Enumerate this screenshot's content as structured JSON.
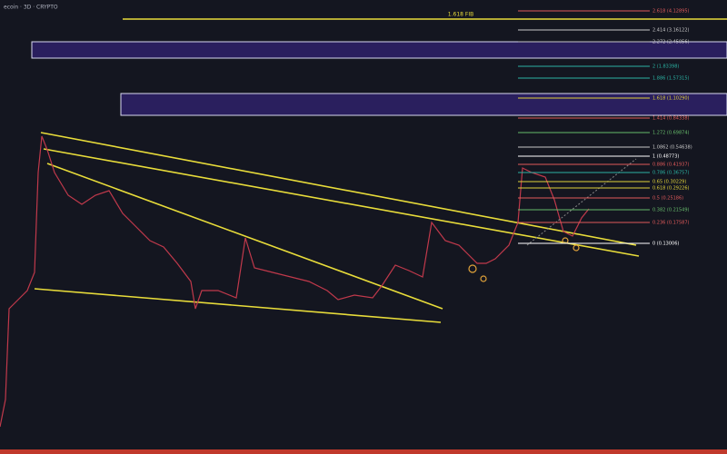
{
  "header": {
    "symbol": "ecoin · 3D · CRYPTO"
  },
  "extension_label": "1.618 FIB",
  "fib_levels": [
    {
      "label": "2.618 (4.12895)",
      "color": "#e05a5a"
    },
    {
      "label": "2.414 (3.16122)",
      "color": "#c8c8c8"
    },
    {
      "label": "2.272 (2.45056)",
      "color": "#c8c8c8"
    },
    {
      "label": "2 (1.83398)",
      "color": "#2bb3a3"
    },
    {
      "label": "1.886 (1.57315)",
      "color": "#2bb3a3"
    },
    {
      "label": "1.618 (1.10290)",
      "color": "#e0d23a"
    },
    {
      "label": "1.414 (0.84338)",
      "color": "#e05a5a"
    },
    {
      "label": "1.272 (0.69874)",
      "color": "#66bb6a"
    },
    {
      "label": "1.0862 (0.54638)",
      "color": "#c8c8c8"
    },
    {
      "label": "1 (0.48773)",
      "color": "#ffffff"
    },
    {
      "label": "0.886 (0.41937)",
      "color": "#e05a5a"
    },
    {
      "label": "0.786 (0.36757)",
      "color": "#2bb3a3"
    },
    {
      "label": "0.65 (0.30229)",
      "color": "#e0d23a"
    },
    {
      "label": "0.618 (0.29226)",
      "color": "#e0d23a"
    },
    {
      "label": "0.5 (0.25186)",
      "color": "#e05a5a"
    },
    {
      "label": "0.382 (0.21549)",
      "color": "#66bb6a"
    },
    {
      "label": "0.236 (0.17587)",
      "color": "#e05a5a"
    },
    {
      "label": "0 (0.13006)",
      "color": "#ffffff"
    }
  ]
}
